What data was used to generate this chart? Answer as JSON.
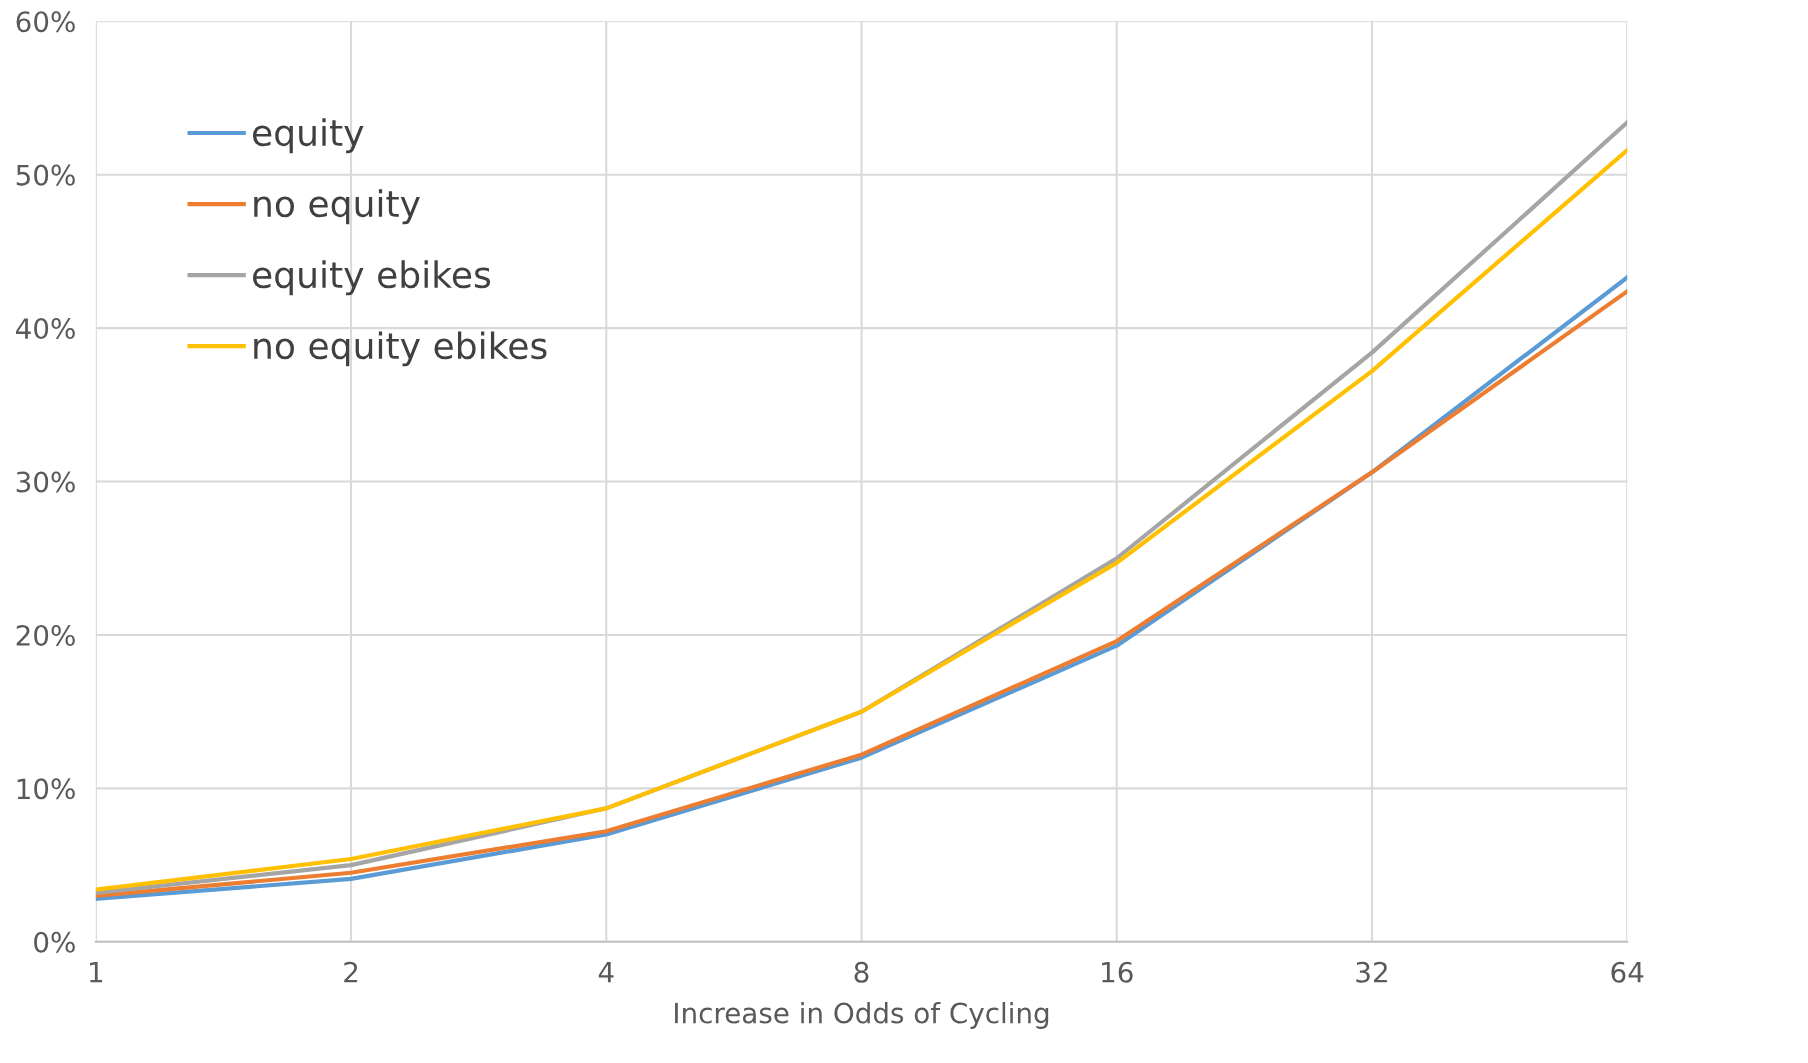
{
  "chart_data": {
    "type": "line",
    "xlabel": "Increase in Odds of Cycling",
    "x": [
      1,
      2,
      4,
      8,
      16,
      32,
      64
    ],
    "log": "x",
    "xlim": [
      1,
      64
    ],
    "xticks": [
      1,
      2,
      4,
      8,
      16,
      32,
      64
    ],
    "ylim": [
      0,
      60
    ],
    "yticks": [
      {
        "value": 0,
        "label": "0%"
      },
      {
        "value": 10,
        "label": "10%"
      },
      {
        "value": 20,
        "label": "20%"
      },
      {
        "value": 30,
        "label": "30%"
      },
      {
        "value": 40,
        "label": "40%"
      },
      {
        "value": 50,
        "label": "50%"
      },
      {
        "value": 60,
        "label": "60%"
      }
    ],
    "grid": true,
    "legend": "top left",
    "marker": "none",
    "line_style": "solid",
    "series": [
      {
        "name": "equity",
        "color": "#5b9bd5",
        "values": [
          2.8,
          4.1,
          7.0,
          12.0,
          19.3,
          30.6,
          43.3
        ]
      },
      {
        "name": "no equity",
        "color": "#ed7d31",
        "values": [
          3.0,
          4.5,
          7.2,
          12.2,
          19.6,
          30.6,
          42.4
        ]
      },
      {
        "name": "equity ebikes",
        "color": "#a5a5a5",
        "values": [
          3.2,
          5.0,
          8.7,
          15.0,
          25.0,
          38.4,
          53.4
        ]
      },
      {
        "name": "no equity ebikes",
        "color": "#ffc000",
        "values": [
          3.4,
          5.4,
          8.7,
          15.0,
          24.7,
          37.2,
          51.6
        ]
      }
    ]
  }
}
